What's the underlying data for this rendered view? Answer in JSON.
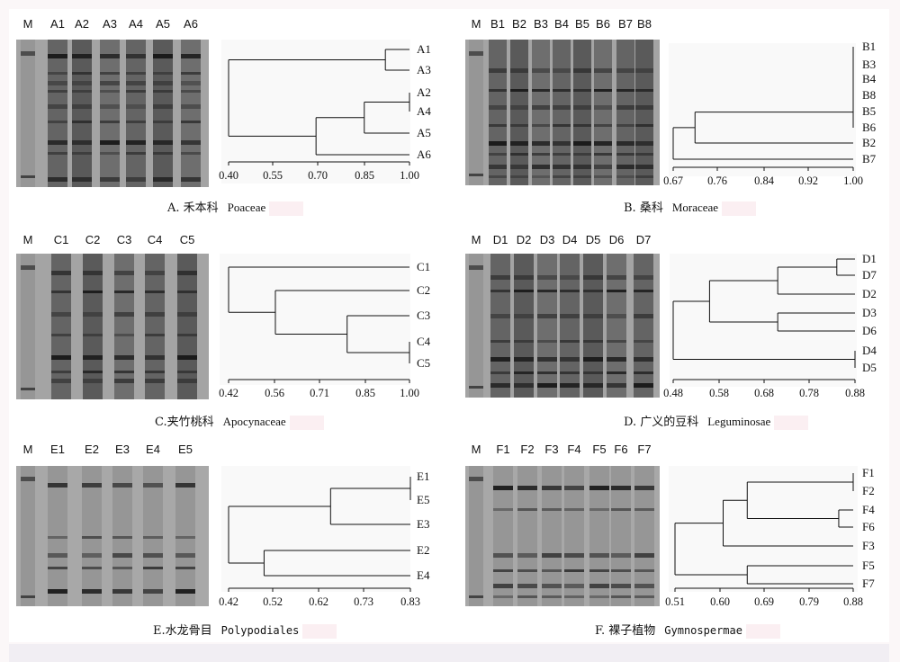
{
  "panels": [
    {
      "id": "A",
      "marker": "M",
      "lanes": [
        "A1",
        "A2",
        "A3",
        "A4",
        "A5",
        "A6"
      ],
      "caption": {
        "label": "A. 禾本科",
        "latin": "Poaceae"
      },
      "leaves": [
        "A1",
        "A3",
        "A2",
        "A4",
        "A5",
        "A6"
      ],
      "ticks": [
        "0.40",
        "0.55",
        "0.70",
        "0.85",
        "1.00"
      ]
    },
    {
      "id": "B",
      "marker": "M",
      "lanes": [
        "B1",
        "B2",
        "B3",
        "B4",
        "B5",
        "B6",
        "B7",
        "B8"
      ],
      "caption": {
        "label": "B. 桑科",
        "latin": "Moraceae"
      },
      "leaves": [
        "B1",
        "B3",
        "B4",
        "B8",
        "B5",
        "B6",
        "B2",
        "B7"
      ],
      "ticks": [
        "0.67",
        "0.76",
        "0.84",
        "0.92",
        "1.00"
      ]
    },
    {
      "id": "C",
      "marker": "M",
      "lanes": [
        "C1",
        "C2",
        "C3",
        "C4",
        "C5"
      ],
      "caption": {
        "label": "C.夹竹桃科",
        "latin": "Apocynaceae"
      },
      "leaves": [
        "C1",
        "C2",
        "C3",
        "C4",
        "C5"
      ],
      "ticks": [
        "0.42",
        "0.56",
        "0.71",
        "0.85",
        "1.00"
      ]
    },
    {
      "id": "D",
      "marker": "M",
      "lanes": [
        "D1",
        "D2",
        "D3",
        "D4",
        "D5",
        "D6",
        "D7"
      ],
      "caption": {
        "label": "D. 广义的豆科",
        "latin": "Leguminosae"
      },
      "leaves": [
        "D1",
        "D7",
        "D2",
        "D3",
        "D6",
        "D4",
        "D5"
      ],
      "ticks": [
        "0.48",
        "0.58",
        "0.68",
        "0.78",
        "0.88"
      ]
    },
    {
      "id": "E",
      "marker": "M",
      "lanes": [
        "E1",
        "E2",
        "E3",
        "E4",
        "E5"
      ],
      "caption": {
        "label": "E.水龙骨目",
        "latin": "Polypodiales"
      },
      "leaves": [
        "E1",
        "E5",
        "E3",
        "E2",
        "E4"
      ],
      "ticks": [
        "0.42",
        "0.52",
        "0.62",
        "0.73",
        "0.83"
      ]
    },
    {
      "id": "F",
      "marker": "M",
      "lanes": [
        "F1",
        "F2",
        "F3",
        "F4",
        "F5",
        "F6",
        "F7"
      ],
      "caption": {
        "label": "F. 裸子植物",
        "latin": "Gymnospermae"
      },
      "leaves": [
        "F1",
        "F2",
        "F4",
        "F6",
        "F3",
        "F5",
        "F7"
      ],
      "ticks": [
        "0.51",
        "0.60",
        "0.69",
        "0.79",
        "0.88"
      ]
    }
  ]
}
